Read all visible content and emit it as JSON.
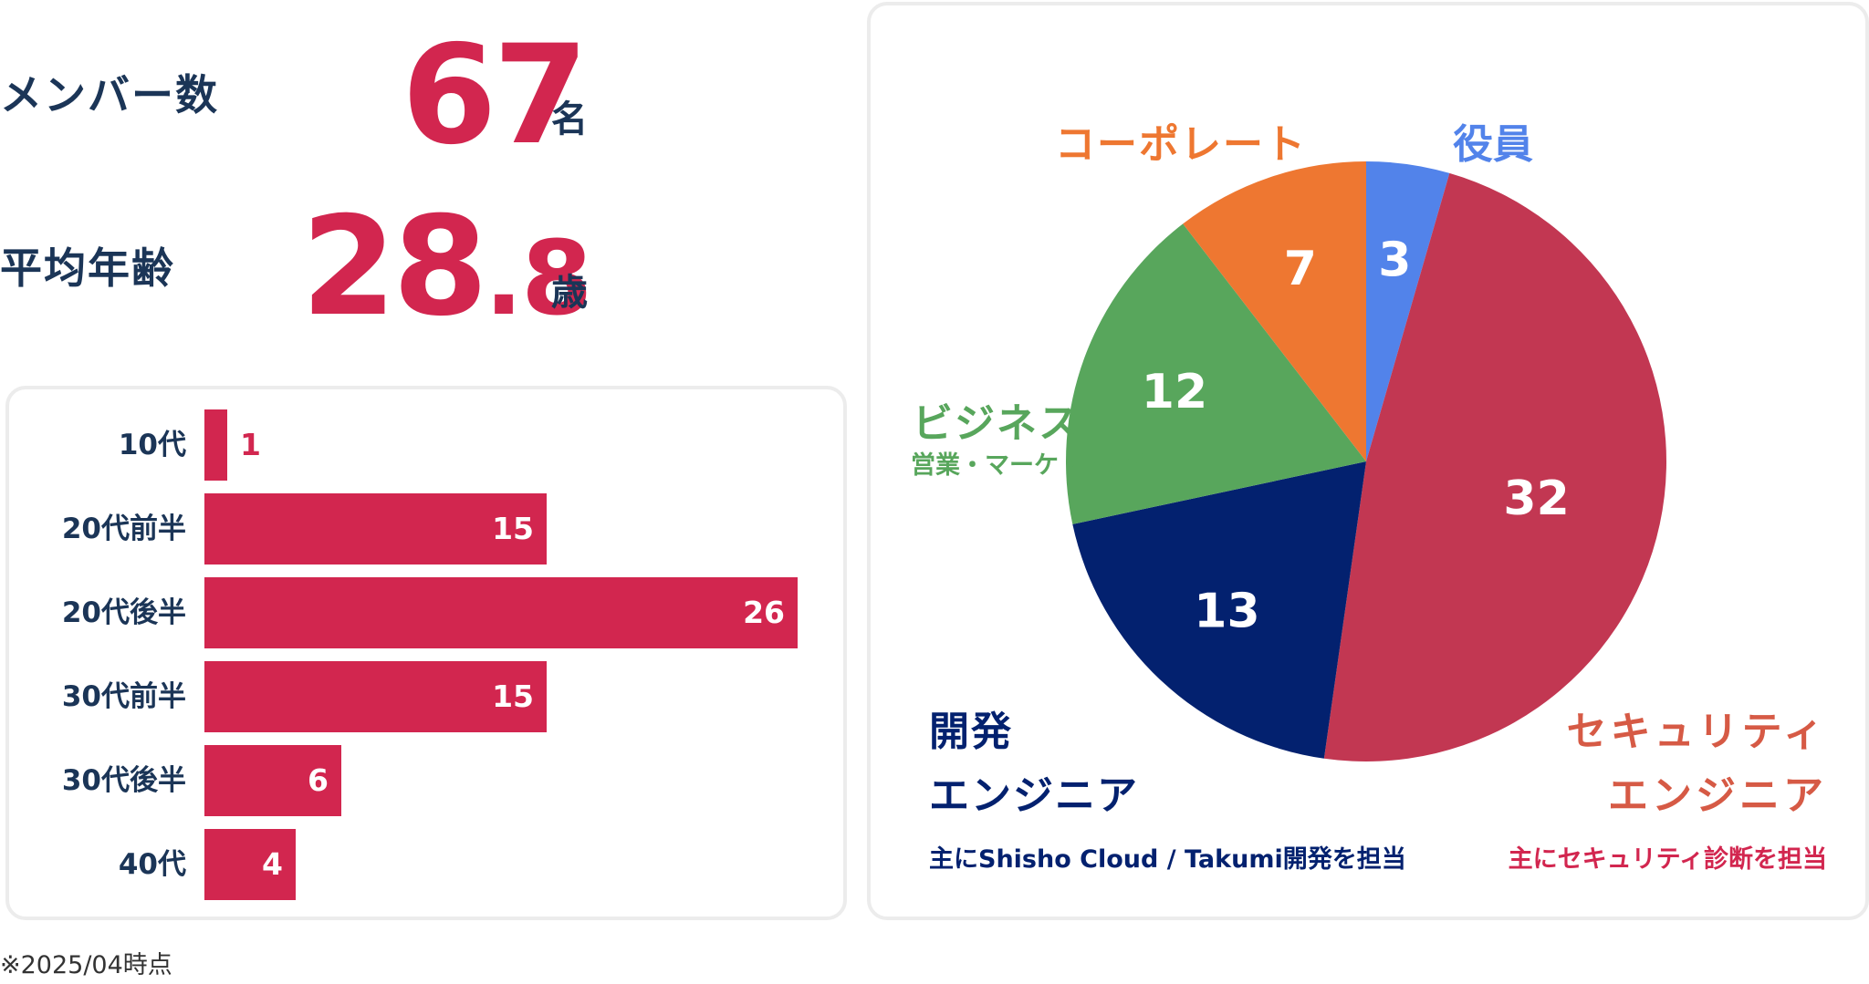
{
  "stats": {
    "members": {
      "label": "メンバー数",
      "value": "67",
      "unit": "名"
    },
    "age": {
      "label": "平均年齢",
      "value_int": "28",
      "value_dec": ".8",
      "unit": "歳"
    }
  },
  "footnote": "※2025/04時点",
  "colors": {
    "accent": "#d2264f",
    "navy_text": "#1b3557",
    "executives": "#5283ea",
    "security": "#c23752",
    "development": "#03216f",
    "business": "#58a65c",
    "corporate": "#ee7731"
  },
  "chart_data": [
    {
      "type": "bar",
      "orientation": "horizontal",
      "categories": [
        "10代",
        "20代前半",
        "20代後半",
        "30代前半",
        "30代後半",
        "40代"
      ],
      "values": [
        1,
        15,
        26,
        15,
        6,
        4
      ]
    },
    {
      "type": "pie",
      "slices": [
        {
          "key": "executives",
          "label": "役員",
          "value": 3
        },
        {
          "key": "security",
          "label": "セキュリティ\nエンジニア",
          "sublabel": "主にセキュリティ診断を担当",
          "value": 32
        },
        {
          "key": "development",
          "label": "開発\nエンジニア",
          "sublabel": "主にShisho Cloud / Takumi開発を担当",
          "value": 13
        },
        {
          "key": "business",
          "label": "ビジネス",
          "sublabel": "営業・マーケ・PM等",
          "value": 12
        },
        {
          "key": "corporate",
          "label": "コーポレート",
          "value": 7
        }
      ]
    }
  ]
}
